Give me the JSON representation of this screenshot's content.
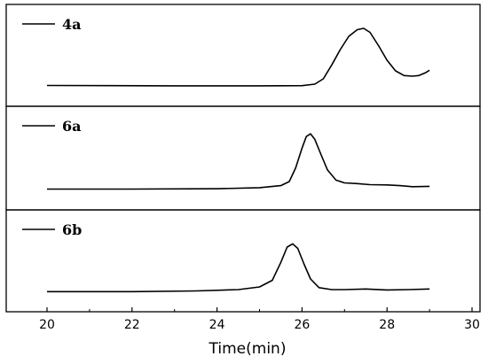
{
  "chart_data": {
    "type": "line",
    "xlabel": "Time(min)",
    "x_ticks": [
      "20",
      "22",
      "24",
      "26",
      "28",
      "30"
    ],
    "xlim": [
      20,
      30
    ],
    "panels": [
      {
        "name": "4a",
        "points": [
          [
            20.0,
            0.02
          ],
          [
            23.0,
            0.015
          ],
          [
            25.0,
            0.015
          ],
          [
            26.0,
            0.018
          ],
          [
            26.3,
            0.04
          ],
          [
            26.5,
            0.12
          ],
          [
            26.7,
            0.33
          ],
          [
            26.9,
            0.56
          ],
          [
            27.1,
            0.76
          ],
          [
            27.3,
            0.86
          ],
          [
            27.45,
            0.88
          ],
          [
            27.6,
            0.82
          ],
          [
            27.8,
            0.62
          ],
          [
            28.0,
            0.4
          ],
          [
            28.2,
            0.24
          ],
          [
            28.4,
            0.17
          ],
          [
            28.6,
            0.16
          ],
          [
            28.75,
            0.17
          ],
          [
            28.9,
            0.21
          ],
          [
            29.0,
            0.25
          ]
        ]
      },
      {
        "name": "6a",
        "points": [
          [
            20.0,
            0.02
          ],
          [
            22.0,
            0.02
          ],
          [
            24.0,
            0.025
          ],
          [
            25.0,
            0.04
          ],
          [
            25.5,
            0.07
          ],
          [
            25.7,
            0.13
          ],
          [
            25.85,
            0.33
          ],
          [
            26.0,
            0.62
          ],
          [
            26.1,
            0.79
          ],
          [
            26.2,
            0.83
          ],
          [
            26.3,
            0.75
          ],
          [
            26.45,
            0.52
          ],
          [
            26.6,
            0.3
          ],
          [
            26.8,
            0.15
          ],
          [
            27.0,
            0.11
          ],
          [
            27.3,
            0.1
          ],
          [
            27.6,
            0.085
          ],
          [
            28.0,
            0.08
          ],
          [
            28.3,
            0.07
          ],
          [
            28.6,
            0.055
          ],
          [
            29.0,
            0.06
          ]
        ]
      },
      {
        "name": "6b",
        "points": [
          [
            20.0,
            0.01
          ],
          [
            22.0,
            0.01
          ],
          [
            23.5,
            0.02
          ],
          [
            24.5,
            0.04
          ],
          [
            25.0,
            0.08
          ],
          [
            25.3,
            0.18
          ],
          [
            25.5,
            0.45
          ],
          [
            25.65,
            0.68
          ],
          [
            25.78,
            0.73
          ],
          [
            25.9,
            0.66
          ],
          [
            26.05,
            0.42
          ],
          [
            26.2,
            0.2
          ],
          [
            26.4,
            0.07
          ],
          [
            26.7,
            0.04
          ],
          [
            27.0,
            0.04
          ],
          [
            27.5,
            0.05
          ],
          [
            28.0,
            0.035
          ],
          [
            28.5,
            0.04
          ],
          [
            29.0,
            0.05
          ]
        ]
      }
    ]
  }
}
